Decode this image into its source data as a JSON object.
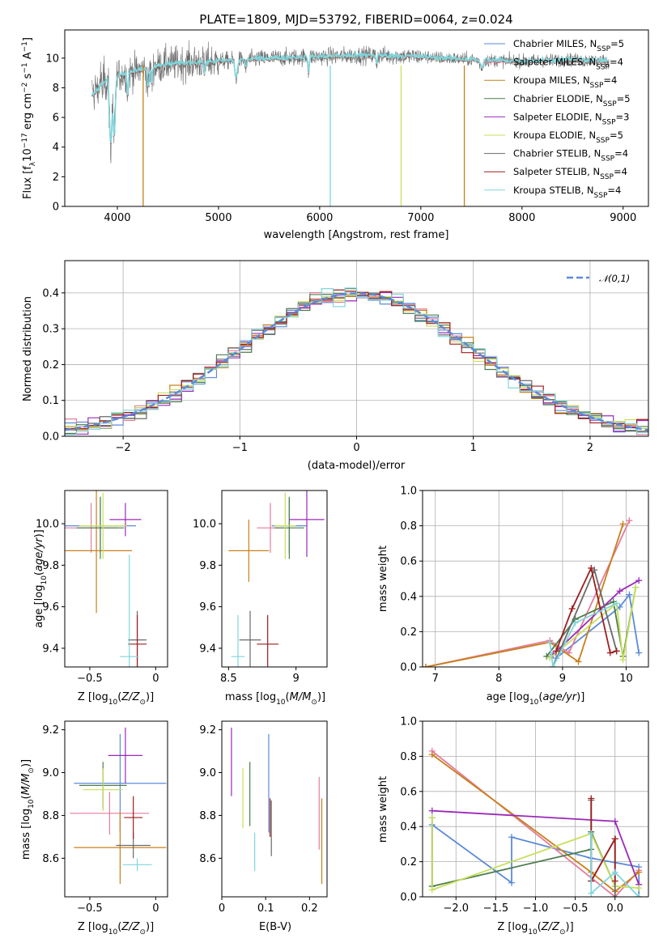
{
  "title": "PLATE=1809, MJD=53792, FIBERID=0064, z=0.024",
  "colors": [
    "#5b8bd8",
    "#e27d9e",
    "#c8801a",
    "#4d7d4d",
    "#9a2ab8",
    "#c6e05a",
    "#6a6a6a",
    "#9e1d1d",
    "#7fd6dc"
  ],
  "models": [
    "Chabrier MILES, N_SSP=5",
    "Salpeter MILES, N_SSP=4",
    "Kroupa MILES, N_SSP=4",
    "Chabrier ELODIE, N_SSP=5",
    "Salpeter ELODIE, N_SSP=3",
    "Kroupa ELODIE, N_SSP=5",
    "Chabrier STELIB, N_SSP=4",
    "Salpeter STELIB, N_SSP=4",
    "Kroupa STELIB, N_SSP=4"
  ],
  "chart_data": [
    {
      "id": "spectrum",
      "type": "line",
      "title": "PLATE=1809, MJD=53792, FIBERID=0064, z=0.024",
      "xlabel": "wavelength [Angstrom, rest frame]",
      "ylabel": "Flux [f_λ10^-17 erg cm^-2 s^-1 A^-1]",
      "xlim": [
        3480,
        9250
      ],
      "ylim": [
        0,
        11.9
      ],
      "xticks": [
        4000,
        5000,
        6000,
        7000,
        8000,
        9000
      ],
      "yticks": [
        0,
        2,
        4,
        6,
        8,
        10
      ],
      "series": [
        {
          "name": "Chabrier STELIB, N_SSP=4",
          "x": [
            3750,
            3900,
            4100,
            4500,
            5000,
            5500,
            6000,
            6500,
            7000,
            7500,
            8000,
            8500,
            8850
          ],
          "values": [
            7.5,
            8.6,
            9.0,
            9.6,
            9.8,
            10.0,
            10.1,
            10.2,
            10.1,
            9.9,
            9.8,
            9.9,
            9.8
          ]
        },
        {
          "name": "Kroupa STELIB, N_SSP=4",
          "x": [
            3750,
            3900,
            4100,
            4500,
            5000,
            5500,
            6000,
            6500,
            7000,
            7500,
            8000,
            8500,
            8850
          ],
          "values": [
            7.5,
            8.5,
            9.0,
            9.6,
            9.8,
            10.0,
            10.1,
            10.2,
            10.1,
            9.9,
            9.8,
            9.9,
            9.8
          ]
        }
      ],
      "legend_position": "upper right",
      "grid": false
    },
    {
      "id": "residuals",
      "type": "histogram",
      "xlabel": "(data-model)/error",
      "ylabel": "Normed distribution",
      "xlim": [
        -2.5,
        2.5
      ],
      "ylim": [
        0,
        0.49
      ],
      "xticks": [
        -2,
        -1,
        0,
        1,
        2
      ],
      "yticks": [
        0.0,
        0.1,
        0.2,
        0.3,
        0.4
      ],
      "legend": "𝒩(0,1)",
      "legend_position": "upper right",
      "grid": true
    },
    {
      "id": "age_vs_Z",
      "type": "scatter",
      "xlabel": "Z [log10(Z/Z☉)]",
      "ylabel": "age [log10(age/yr)]",
      "xlim": [
        -0.69,
        0.09
      ],
      "ylim": [
        9.31,
        10.16
      ],
      "xticks": [
        -0.5,
        0.0
      ],
      "yticks": [
        9.4,
        9.6,
        9.8,
        10.0
      ],
      "points": [
        {
          "x": -0.42,
          "y": 9.99,
          "xerr": 0.27,
          "yerr": 0.13
        },
        {
          "x": -0.49,
          "y": 9.98,
          "xerr": 0.2,
          "yerr": 0.12
        },
        {
          "x": -0.45,
          "y": 9.87,
          "xerr": 0.27,
          "yerr": 0.3
        },
        {
          "x": -0.42,
          "y": 9.98,
          "xerr": 0.18,
          "yerr": 0.15
        },
        {
          "x": -0.23,
          "y": 10.02,
          "xerr": 0.12,
          "yerr": 0.08
        },
        {
          "x": -0.4,
          "y": 9.99,
          "xerr": 0.18,
          "yerr": 0.16
        },
        {
          "x": -0.14,
          "y": 9.44,
          "xerr": 0.07,
          "yerr": 0.14
        },
        {
          "x": -0.14,
          "y": 9.42,
          "xerr": 0.07,
          "yerr": 0.14
        },
        {
          "x": -0.2,
          "y": 9.36,
          "xerr": 0.07,
          "yerr": 0.49
        }
      ]
    },
    {
      "id": "age_vs_mass",
      "type": "scatter",
      "xlabel": "mass [log10(M/M☉)]",
      "ylabel": "",
      "xlim": [
        8.45,
        9.23
      ],
      "ylim": [
        9.31,
        10.16
      ],
      "xticks": [
        8.5,
        9.0
      ],
      "yticks": [
        9.4,
        9.6,
        9.8,
        10.0
      ],
      "points": [
        {
          "x": 8.95,
          "y": 9.99,
          "xerr": 0.13,
          "yerr": 0.13
        },
        {
          "x": 8.81,
          "y": 9.98,
          "xerr": 0.1,
          "yerr": 0.12
        },
        {
          "x": 8.65,
          "y": 9.87,
          "xerr": 0.15,
          "yerr": 0.15
        },
        {
          "x": 8.95,
          "y": 9.98,
          "xerr": 0.11,
          "yerr": 0.15
        },
        {
          "x": 9.08,
          "y": 10.02,
          "xerr": 0.13,
          "yerr": 0.18
        },
        {
          "x": 8.92,
          "y": 9.99,
          "xerr": 0.08,
          "yerr": 0.16
        },
        {
          "x": 8.66,
          "y": 9.44,
          "xerr": 0.08,
          "yerr": 0.14
        },
        {
          "x": 8.79,
          "y": 9.42,
          "xerr": 0.08,
          "yerr": 0.14
        },
        {
          "x": 8.57,
          "y": 9.36,
          "xerr": 0.05,
          "yerr": 0.2
        }
      ]
    },
    {
      "id": "massweight_vs_age",
      "type": "line",
      "xlabel": "age [log10(age/yr)]",
      "ylabel": "mass weight",
      "xlim": [
        6.8,
        10.35
      ],
      "ylim": [
        0,
        1.0
      ],
      "xticks": [
        7,
        8,
        9,
        10
      ],
      "yticks": [
        0.0,
        0.2,
        0.4,
        0.6,
        0.8,
        1.0
      ],
      "grid": true,
      "series": [
        {
          "name": "Chabrier MILES",
          "x": [
            8.85,
            8.9,
            9.9,
            10.05,
            10.2
          ],
          "values": [
            0.0,
            0.05,
            0.34,
            0.41,
            0.08
          ]
        },
        {
          "name": "Salpeter MILES",
          "x": [
            6.85,
            8.8,
            9.1,
            10.05
          ],
          "values": [
            0.0,
            0.15,
            0.08,
            0.83
          ]
        },
        {
          "name": "Kroupa MILES",
          "x": [
            6.85,
            8.8,
            9.25,
            9.95
          ],
          "values": [
            0.0,
            0.14,
            0.03,
            0.81
          ]
        },
        {
          "name": "Chabrier ELODIE",
          "x": [
            8.75,
            9.2,
            9.8,
            9.95,
            10.15
          ],
          "values": [
            0.06,
            0.27,
            0.37,
            0.06,
            0.45
          ]
        },
        {
          "name": "Salpeter ELODIE",
          "x": [
            8.85,
            9.9,
            10.2
          ],
          "values": [
            0.07,
            0.43,
            0.49
          ]
        },
        {
          "name": "Kroupa ELODIE",
          "x": [
            8.8,
            9.85,
            9.95,
            10.15
          ],
          "values": [
            0.05,
            0.36,
            0.04,
            0.45
          ]
        },
        {
          "name": "Chabrier STELIB",
          "x": [
            8.85,
            9.5,
            9.85
          ],
          "values": [
            0.0,
            0.55,
            0.09
          ]
        },
        {
          "name": "Salpeter STELIB",
          "x": [
            8.9,
            9.15,
            9.45,
            9.75,
            9.85
          ],
          "values": [
            0.09,
            0.33,
            0.56,
            0.08,
            0.09
          ]
        },
        {
          "name": "Kroupa STELIB",
          "x": [
            8.8,
            8.85,
            9.2,
            9.85
          ],
          "values": [
            0.14,
            0.0,
            0.25,
            0.36
          ]
        }
      ]
    },
    {
      "id": "mass_vs_Z",
      "type": "scatter",
      "xlabel": "Z [log10(Z/Z☉)]",
      "ylabel": "mass [log10(M/M☉)]",
      "xlim": [
        -0.69,
        0.09
      ],
      "ylim": [
        8.42,
        9.24
      ],
      "xticks": [
        -0.5,
        0.0
      ],
      "yticks": [
        8.6,
        8.8,
        9.0,
        9.2
      ],
      "points": [
        {
          "x": -0.27,
          "y": 8.95,
          "xerr": 0.35,
          "yerr": 0.23
        },
        {
          "x": -0.35,
          "y": 8.81,
          "xerr": 0.3,
          "yerr": 0.1
        },
        {
          "x": -0.27,
          "y": 8.65,
          "xerr": 0.35,
          "yerr": 0.17
        },
        {
          "x": -0.4,
          "y": 8.94,
          "xerr": 0.18,
          "yerr": 0.11
        },
        {
          "x": -0.23,
          "y": 9.08,
          "xerr": 0.13,
          "yerr": 0.13
        },
        {
          "x": -0.4,
          "y": 8.92,
          "xerr": 0.15,
          "yerr": 0.1
        },
        {
          "x": -0.17,
          "y": 8.66,
          "xerr": 0.13,
          "yerr": 0.06
        },
        {
          "x": -0.17,
          "y": 8.79,
          "xerr": 0.07,
          "yerr": 0.1
        },
        {
          "x": -0.14,
          "y": 8.57,
          "xerr": 0.11,
          "yerr": 0.03
        }
      ]
    },
    {
      "id": "mass_vs_ebv",
      "type": "scatter",
      "xlabel": "E(B-V)",
      "ylabel": "",
      "xlim": [
        0.0,
        0.24
      ],
      "ylim": [
        8.42,
        9.24
      ],
      "xticks": [
        0.0,
        0.1,
        0.2
      ],
      "yticks": [
        8.6,
        8.8,
        9.0,
        9.2
      ],
      "points": [
        {
          "x": 0.107,
          "y": 8.95,
          "yerr": 0.23
        },
        {
          "x": 0.222,
          "y": 8.81,
          "yerr": 0.17
        },
        {
          "x": 0.228,
          "y": 8.68,
          "yerr": 0.2
        },
        {
          "x": 0.064,
          "y": 8.9,
          "yerr": 0.15
        },
        {
          "x": 0.022,
          "y": 9.05,
          "yerr": 0.16
        },
        {
          "x": 0.048,
          "y": 8.88,
          "yerr": 0.14
        },
        {
          "x": 0.113,
          "y": 8.74,
          "yerr": 0.13
        },
        {
          "x": 0.11,
          "y": 8.79,
          "yerr": 0.09
        },
        {
          "x": 0.075,
          "y": 8.63,
          "yerr": 0.09
        }
      ]
    },
    {
      "id": "massweight_vs_Z",
      "type": "line",
      "xlabel": "Z [log10(Z/Z☉)]",
      "ylabel": "mass weight",
      "xlim": [
        -2.42,
        0.42
      ],
      "ylim": [
        0,
        1.0
      ],
      "xticks": [
        -2.0,
        -1.5,
        -1.0,
        -0.5,
        0.0
      ],
      "yticks": [
        0.0,
        0.2,
        0.4,
        0.6,
        0.8,
        1.0
      ],
      "grid": true,
      "series": [
        {
          "name": "Chabrier MILES",
          "x": [
            -2.3,
            -2.3,
            -1.3,
            -1.3,
            -0.3,
            0.3,
            0.3
          ],
          "values": [
            0.06,
            0.41,
            0.08,
            0.34,
            0.22,
            0.17,
            0.0
          ]
        },
        {
          "name": "Salpeter MILES",
          "x": [
            -2.3,
            0.0,
            0.3
          ],
          "values": [
            0.83,
            0.0,
            0.15
          ]
        },
        {
          "name": "Kroupa MILES",
          "x": [
            -2.3,
            -0.3,
            0.0,
            0.3
          ],
          "values": [
            0.81,
            0.14,
            0.03,
            0.14
          ]
        },
        {
          "name": "Chabrier ELODIE",
          "x": [
            -2.3,
            -2.3,
            -0.3,
            -0.3,
            0.0
          ],
          "values": [
            0.45,
            0.06,
            0.27,
            0.37,
            0.06
          ]
        },
        {
          "name": "Salpeter ELODIE",
          "x": [
            -2.3,
            0.0,
            0.3
          ],
          "values": [
            0.49,
            0.43,
            0.07
          ]
        },
        {
          "name": "Kroupa ELODIE",
          "x": [
            -2.3,
            -2.3,
            -0.3,
            0.0,
            0.3
          ],
          "values": [
            0.45,
            0.04,
            0.36,
            0.06,
            0.05
          ]
        },
        {
          "name": "Chabrier STELIB",
          "x": [
            -0.3,
            -0.3,
            0.0,
            0.0
          ],
          "values": [
            0.55,
            0.09,
            0.33,
            0.0
          ]
        },
        {
          "name": "Salpeter STELIB",
          "x": [
            -0.3,
            -0.3,
            0.0,
            0.0
          ],
          "values": [
            0.56,
            0.09,
            0.33,
            0.09
          ]
        },
        {
          "name": "Kroupa STELIB",
          "x": [
            -0.3,
            -0.3,
            0.0,
            0.3
          ],
          "values": [
            0.36,
            0.02,
            0.14,
            0.0
          ]
        }
      ]
    }
  ]
}
